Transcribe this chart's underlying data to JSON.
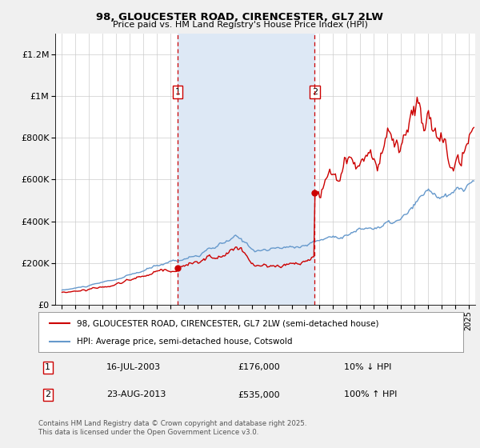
{
  "title": "98, GLOUCESTER ROAD, CIRENCESTER, GL7 2LW",
  "subtitle": "Price paid vs. HM Land Registry's House Price Index (HPI)",
  "legend_line1": "98, GLOUCESTER ROAD, CIRENCESTER, GL7 2LW (semi-detached house)",
  "legend_line2": "HPI: Average price, semi-detached house, Cotswold",
  "annotation1_num": "1",
  "annotation1_date": "16-JUL-2003",
  "annotation1_price": "£176,000",
  "annotation1_hpi": "10% ↓ HPI",
  "annotation2_num": "2",
  "annotation2_date": "23-AUG-2013",
  "annotation2_price": "£535,000",
  "annotation2_hpi": "100% ↑ HPI",
  "footer": "Contains HM Land Registry data © Crown copyright and database right 2025.\nThis data is licensed under the Open Government Licence v3.0.",
  "sale1_year": 2003.54,
  "sale1_price": 176000,
  "sale2_year": 2013.65,
  "sale2_price": 535000,
  "vline1_year": 2003.54,
  "vline2_year": 2013.65,
  "property_color": "#cc0000",
  "hpi_color": "#6699cc",
  "vline_color": "#cc0000",
  "shade_color": "#dde8f5",
  "background_color": "#f0f0f0",
  "plot_background": "#ffffff",
  "ylim_max": 1300000,
  "xlim_start": 1994.5,
  "xlim_end": 2025.5,
  "yticks": [
    0,
    200000,
    400000,
    600000,
    800000,
    1000000,
    1200000
  ],
  "ytick_labels": [
    "£0",
    "£200K",
    "£400K",
    "£600K",
    "£800K",
    "£1M",
    "£1.2M"
  ]
}
